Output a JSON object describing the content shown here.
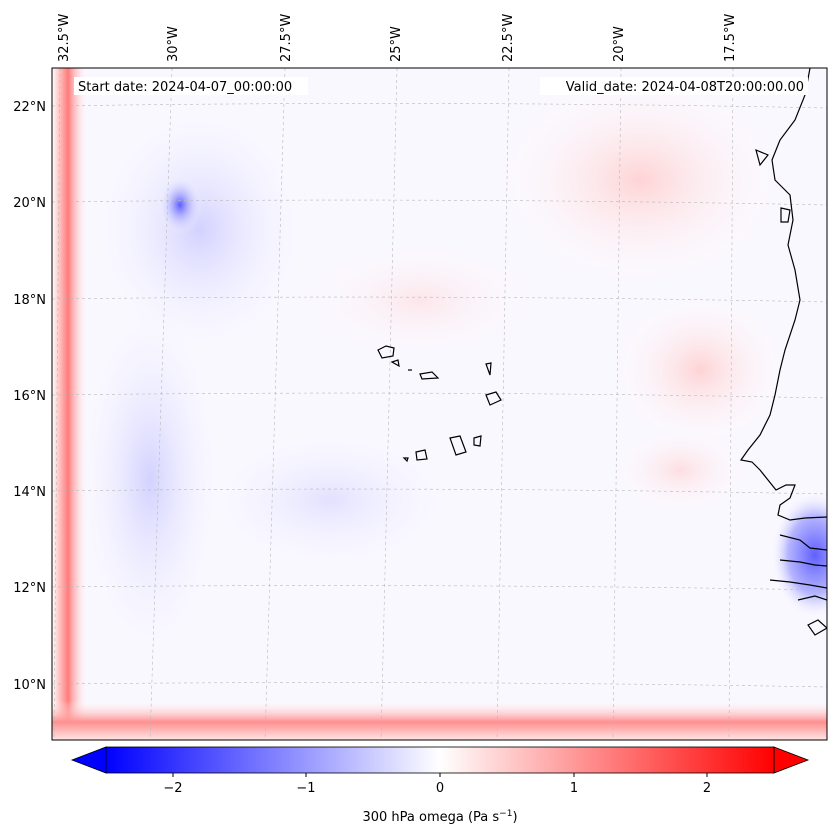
{
  "map": {
    "start_date": "Start date: 2024-04-07_00:00:00",
    "valid_date": "Valid_date: 2024-04-08T20:00:00.00",
    "lon_labels": [
      "32.5°W",
      "30°W",
      "27.5°W",
      "25°W",
      "22.5°W",
      "20°W",
      "17.5°W"
    ],
    "lat_labels": [
      "22°N",
      "20°N",
      "18°N",
      "16°N",
      "14°N",
      "12°N",
      "10°N"
    ],
    "colors": {
      "negative": "#0000ff",
      "neutral": "#ffffff",
      "positive": "#ff0000",
      "coastline": "#000000",
      "gridline": "#b0b0b0"
    }
  },
  "colorbar": {
    "label": "300 hPa omega (Pa s",
    "unit_exponent": "−1",
    "label_close": ")",
    "ticks": [
      "−2",
      "−1",
      "0",
      "1",
      "2"
    ],
    "range": [
      -2.5,
      2.5
    ]
  }
}
